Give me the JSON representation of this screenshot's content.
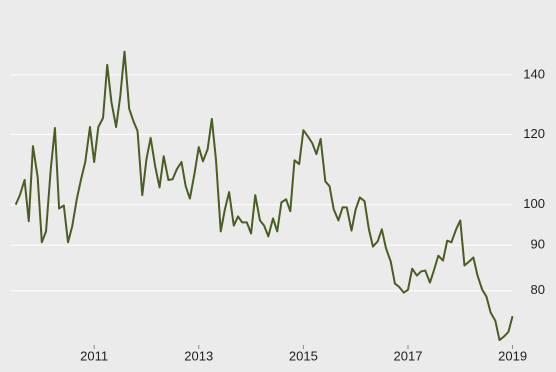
{
  "chart_data": {
    "type": "line",
    "log_scale": true,
    "grid": true,
    "color": "#4b5d23",
    "x": [
      2009.5,
      2009.58,
      2009.67,
      2009.75,
      2009.83,
      2009.92,
      2010.0,
      2010.08,
      2010.17,
      2010.25,
      2010.33,
      2010.42,
      2010.5,
      2010.58,
      2010.67,
      2010.75,
      2010.83,
      2010.92,
      2011.0,
      2011.08,
      2011.17,
      2011.25,
      2011.33,
      2011.42,
      2011.5,
      2011.58,
      2011.67,
      2011.75,
      2011.83,
      2011.92,
      2012.0,
      2012.08,
      2012.17,
      2012.25,
      2012.33,
      2012.42,
      2012.5,
      2012.58,
      2012.67,
      2012.75,
      2012.83,
      2012.92,
      2013.0,
      2013.08,
      2013.17,
      2013.25,
      2013.33,
      2013.42,
      2013.5,
      2013.58,
      2013.67,
      2013.75,
      2013.83,
      2013.92,
      2014.0,
      2014.08,
      2014.17,
      2014.25,
      2014.33,
      2014.42,
      2014.5,
      2014.58,
      2014.67,
      2014.75,
      2014.83,
      2014.92,
      2015.0,
      2015.08,
      2015.17,
      2015.25,
      2015.33,
      2015.42,
      2015.5,
      2015.58,
      2015.67,
      2015.75,
      2015.83,
      2015.92,
      2016.0,
      2016.08,
      2016.17,
      2016.25,
      2016.33,
      2016.42,
      2016.5,
      2016.58,
      2016.67,
      2016.75,
      2016.83,
      2016.92,
      2017.0,
      2017.08,
      2017.17,
      2017.25,
      2017.33,
      2017.42,
      2017.5,
      2017.58,
      2017.67,
      2017.75,
      2017.83,
      2017.92,
      2018.0,
      2018.08,
      2018.17,
      2018.25,
      2018.33,
      2018.42,
      2018.5,
      2018.58,
      2018.67,
      2018.75,
      2018.83,
      2018.92,
      2019.0
    ],
    "values": [
      100,
      102.5,
      106.6,
      95.8,
      116.4,
      107.4,
      90.7,
      93.3,
      109.6,
      122,
      99,
      99.8,
      90.7,
      94.5,
      101.6,
      106.8,
      111.7,
      122.3,
      111.7,
      122.3,
      125.2,
      143.7,
      130.5,
      122.3,
      132.6,
      148.7,
      128.2,
      124.2,
      121,
      102.5,
      112.5,
      118.9,
      110.2,
      104.6,
      113.4,
      106.6,
      106.8,
      109.6,
      111.7,
      104.9,
      101.6,
      108.5,
      116.1,
      111.9,
      115.5,
      124.9,
      112.2,
      93.3,
      98.8,
      103.3,
      94.7,
      97,
      95.5,
      95.5,
      92.8,
      102.5,
      96,
      94.7,
      92.1,
      96.5,
      93.3,
      100.6,
      101.4,
      98.3,
      112.2,
      111.1,
      121.3,
      119.5,
      117.3,
      114,
      118.6,
      106.2,
      104.9,
      98.8,
      96,
      99.3,
      99.3,
      93.5,
      98.8,
      101.9,
      100.9,
      94,
      89.7,
      90.9,
      93.8,
      89.3,
      86.3,
      81.5,
      80.8,
      79.6,
      80.2,
      84.7,
      83.2,
      84.1,
      84.3,
      81.7,
      84.5,
      87.6,
      86.5,
      91.1,
      90.7,
      93.8,
      96,
      85.4,
      86.3,
      87.2,
      83.2,
      80.2,
      78.8,
      75.6,
      74,
      70.4,
      71,
      71.9,
      74.9
    ],
    "xlim": [
      2009.2,
      2019.83
    ],
    "xticks": [
      2011,
      2013,
      2015,
      2017,
      2019
    ],
    "ylim": [
      69.5,
      170
    ],
    "yticks": [
      80,
      90,
      100,
      120,
      140
    ]
  }
}
